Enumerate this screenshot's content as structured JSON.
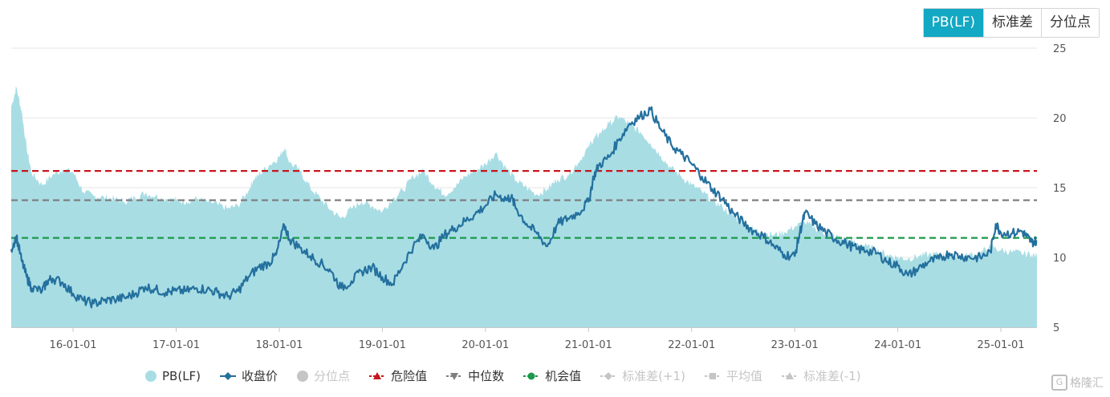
{
  "tabs": [
    {
      "label": "PB(LF)",
      "active": true
    },
    {
      "label": "标准差",
      "active": false
    },
    {
      "label": "分位点",
      "active": false
    }
  ],
  "chart_data": {
    "type": "area",
    "y_ticks": [
      "5",
      "10",
      "15",
      "20",
      "25"
    ],
    "ylim": [
      5,
      25
    ],
    "x_ticks": [
      "16-01-01",
      "17-01-01",
      "18-01-01",
      "19-01-01",
      "20-01-01",
      "21-01-01",
      "22-01-01",
      "23-01-01",
      "24-01-01",
      "25-01-01"
    ],
    "x_range": [
      2015.4,
      2025.35
    ],
    "grid": true,
    "legend_position": "bottom",
    "reference_lines": [
      {
        "name": "危险值",
        "value": 16.2,
        "color": "#c8161d"
      },
      {
        "name": "中位数",
        "value": 14.1,
        "color": "#7f7f7f"
      },
      {
        "name": "机会值",
        "value": 11.4,
        "color": "#1a9a4a"
      }
    ],
    "series": [
      {
        "name": "PB(LF)",
        "color": "#a8dde4",
        "x": [
          2015.4,
          2015.45,
          2015.5,
          2015.55,
          2015.6,
          2015.7,
          2015.8,
          2015.9,
          2016.0,
          2016.1,
          2016.2,
          2016.3,
          2016.4,
          2016.5,
          2016.6,
          2016.7,
          2016.8,
          2016.9,
          2017.0,
          2017.1,
          2017.2,
          2017.3,
          2017.4,
          2017.5,
          2017.6,
          2017.7,
          2017.75,
          2017.8,
          2017.9,
          2018.0,
          2018.05,
          2018.1,
          2018.2,
          2018.3,
          2018.4,
          2018.5,
          2018.6,
          2018.7,
          2018.8,
          2018.9,
          2019.0,
          2019.1,
          2019.2,
          2019.3,
          2019.4,
          2019.5,
          2019.6,
          2019.7,
          2019.8,
          2019.9,
          2020.0,
          2020.1,
          2020.2,
          2020.3,
          2020.4,
          2020.5,
          2020.6,
          2020.7,
          2020.8,
          2020.9,
          2021.0,
          2021.05,
          2021.1,
          2021.2,
          2021.3,
          2021.4,
          2021.5,
          2021.6,
          2021.7,
          2021.8,
          2021.9,
          2022.0,
          2022.1,
          2022.2,
          2022.3,
          2022.4,
          2022.5,
          2022.6,
          2022.7,
          2022.8,
          2022.9,
          2023.0,
          2023.1,
          2023.2,
          2023.3,
          2023.4,
          2023.5,
          2023.6,
          2023.7,
          2023.8,
          2023.9,
          2024.0,
          2024.1,
          2024.2,
          2024.3,
          2024.4,
          2024.5,
          2024.6,
          2024.7,
          2024.8,
          2024.9,
          2025.0,
          2025.1,
          2025.2,
          2025.3,
          2025.35
        ],
        "values": [
          20.8,
          22.2,
          20.5,
          17.8,
          16.0,
          15.2,
          15.9,
          16.3,
          16.1,
          14.7,
          14.4,
          14.3,
          14.2,
          14.0,
          14.3,
          14.6,
          14.4,
          14.2,
          14.1,
          14.0,
          14.2,
          14.0,
          13.8,
          13.5,
          13.7,
          14.8,
          15.6,
          15.9,
          16.6,
          17.2,
          17.9,
          16.8,
          16.2,
          15.0,
          14.2,
          13.4,
          12.8,
          13.5,
          14.0,
          13.7,
          13.3,
          14.2,
          14.8,
          15.8,
          16.2,
          15.2,
          14.5,
          15.0,
          15.8,
          16.2,
          16.7,
          17.5,
          16.4,
          15.5,
          15.0,
          14.5,
          14.9,
          15.6,
          15.9,
          16.8,
          17.9,
          18.5,
          18.8,
          19.6,
          20.1,
          19.5,
          19.0,
          18.2,
          17.3,
          16.4,
          15.8,
          15.2,
          14.7,
          14.1,
          13.6,
          13.0,
          12.4,
          12.0,
          11.8,
          11.6,
          11.8,
          12.2,
          12.5,
          12.1,
          11.7,
          11.5,
          11.3,
          11.0,
          10.8,
          10.5,
          10.2,
          10.0,
          9.9,
          10.1,
          10.2,
          10.2,
          10.1,
          10.0,
          10.2,
          10.3,
          10.8,
          10.5,
          10.4,
          10.3,
          10.2,
          10.1
        ]
      },
      {
        "name": "收盘价",
        "color": "#24709e",
        "x": [
          2015.4,
          2015.45,
          2015.5,
          2015.55,
          2015.6,
          2015.7,
          2015.75,
          2015.8,
          2015.9,
          2016.0,
          2016.1,
          2016.2,
          2016.3,
          2016.4,
          2016.5,
          2016.6,
          2016.7,
          2016.8,
          2016.9,
          2017.0,
          2017.1,
          2017.2,
          2017.3,
          2017.4,
          2017.5,
          2017.6,
          2017.7,
          2017.8,
          2017.9,
          2017.97,
          2018.05,
          2018.1,
          2018.2,
          2018.3,
          2018.4,
          2018.5,
          2018.6,
          2018.7,
          2018.8,
          2018.9,
          2019.0,
          2019.1,
          2019.2,
          2019.3,
          2019.4,
          2019.5,
          2019.6,
          2019.7,
          2019.8,
          2019.9,
          2020.0,
          2020.1,
          2020.2,
          2020.25,
          2020.3,
          2020.4,
          2020.5,
          2020.6,
          2020.7,
          2020.8,
          2020.9,
          2021.0,
          2021.05,
          2021.1,
          2021.2,
          2021.3,
          2021.4,
          2021.5,
          2021.6,
          2021.7,
          2021.8,
          2021.9,
          2022.0,
          2022.1,
          2022.2,
          2022.3,
          2022.4,
          2022.5,
          2022.6,
          2022.7,
          2022.8,
          2022.9,
          2023.0,
          2023.05,
          2023.1,
          2023.2,
          2023.3,
          2023.4,
          2023.5,
          2023.6,
          2023.7,
          2023.8,
          2023.9,
          2024.0,
          2024.1,
          2024.2,
          2024.3,
          2024.4,
          2024.5,
          2024.6,
          2024.7,
          2024.8,
          2024.9,
          2024.95,
          2025.0,
          2025.1,
          2025.2,
          2025.25,
          2025.3,
          2025.35
        ],
        "values": [
          10.6,
          11.5,
          9.8,
          8.6,
          7.8,
          7.6,
          8.3,
          8.5,
          8.2,
          7.4,
          6.9,
          6.7,
          6.9,
          7.0,
          7.1,
          7.4,
          7.9,
          7.7,
          7.5,
          7.6,
          7.6,
          7.8,
          7.7,
          7.5,
          7.2,
          7.6,
          8.6,
          9.3,
          9.6,
          10.2,
          12.3,
          11.3,
          10.7,
          10.1,
          9.6,
          9.0,
          7.8,
          8.3,
          9.0,
          9.3,
          8.6,
          8.1,
          9.5,
          10.8,
          11.6,
          10.6,
          11.6,
          12.1,
          12.6,
          13.1,
          13.7,
          14.5,
          14.2,
          14.3,
          13.5,
          12.4,
          11.7,
          10.8,
          12.4,
          12.8,
          13.2,
          14.0,
          15.8,
          16.6,
          17.2,
          18.5,
          19.6,
          20.1,
          20.6,
          19.2,
          18.1,
          17.4,
          16.7,
          15.8,
          14.9,
          14.2,
          13.2,
          12.5,
          11.9,
          11.5,
          10.8,
          10.2,
          10.1,
          11.8,
          13.2,
          12.4,
          11.8,
          11.3,
          11.0,
          10.6,
          10.5,
          10.3,
          9.7,
          9.4,
          8.7,
          9.2,
          9.7,
          9.9,
          10.3,
          10.1,
          10.0,
          10.0,
          10.4,
          12.4,
          11.8,
          11.7,
          11.9,
          11.5,
          11.1,
          11.2
        ]
      }
    ]
  },
  "legend": [
    {
      "label": "PB(LF)",
      "icon": "circle",
      "color": "#a8dde4",
      "active": true
    },
    {
      "label": "收盘价",
      "icon": "diamond-line",
      "color": "#24709e",
      "active": true
    },
    {
      "label": "分位点",
      "icon": "circle",
      "color": "#c5c5c5",
      "active": false
    },
    {
      "label": "危险值",
      "icon": "triangle-line",
      "color": "#c8161d",
      "active": true
    },
    {
      "label": "中位数",
      "icon": "triangle-down-line",
      "color": "#7f7f7f",
      "active": true
    },
    {
      "label": "机会值",
      "icon": "circle-line",
      "color": "#1a9a4a",
      "active": true
    },
    {
      "label": "标准差(+1)",
      "icon": "diamond-line",
      "color": "#c5c5c5",
      "active": false
    },
    {
      "label": "平均值",
      "icon": "square-line",
      "color": "#c5c5c5",
      "active": false
    },
    {
      "label": "标准差(-1)",
      "icon": "triangle-line",
      "color": "#c5c5c5",
      "active": false
    }
  ],
  "watermark": "格隆汇"
}
